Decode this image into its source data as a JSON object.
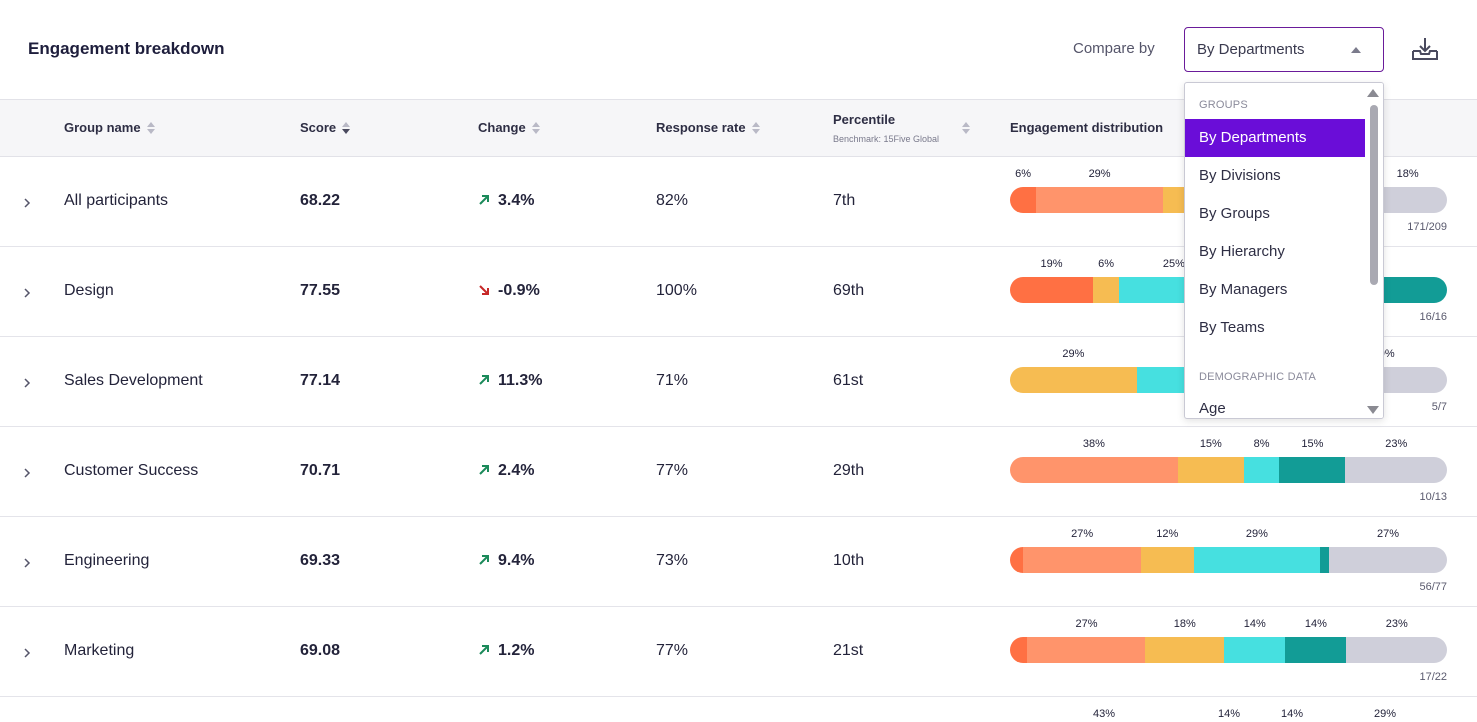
{
  "header": {
    "title": "Engagement breakdown",
    "compare_label": "Compare by",
    "select_value": "By Departments"
  },
  "columns": {
    "group_name": "Group name",
    "score": "Score",
    "change": "Change",
    "response_rate": "Response rate",
    "percentile": "Percentile",
    "percentile_sub": "Benchmark: 15Five Global",
    "distribution": "Engagement distribution"
  },
  "colors": {
    "s1": "#ff7043",
    "s2": "#ff946b",
    "s3": "#f6bc52",
    "s4": "#46e0e0",
    "s5": "#129c96",
    "s6": "#cfcfda",
    "up": "#1b8a5a",
    "down": "#c62828",
    "accent": "#6a0dd8"
  },
  "rows": [
    {
      "name": "All participants",
      "score": "68.22",
      "change": "3.4%",
      "trend": "up",
      "response_rate": "82%",
      "percentile": "7th",
      "count": "171/209",
      "segments": [
        {
          "v": 6,
          "c": "s1",
          "label": "6%"
        },
        {
          "v": 29,
          "c": "s2",
          "label": "29%"
        },
        {
          "v": 16,
          "c": "s3",
          "label": ""
        },
        {
          "v": 18,
          "c": "s4",
          "label": ""
        },
        {
          "v": 13,
          "c": "s5",
          "label": ""
        },
        {
          "v": 18,
          "c": "s6",
          "label": "18%"
        }
      ]
    },
    {
      "name": "Design",
      "score": "77.55",
      "change": "-0.9%",
      "trend": "down",
      "response_rate": "100%",
      "percentile": "69th",
      "count": "16/16",
      "segments": [
        {
          "v": 19,
          "c": "s1",
          "label": "19%"
        },
        {
          "v": 6,
          "c": "s3",
          "label": "6%"
        },
        {
          "v": 25,
          "c": "s4",
          "label": "25%"
        },
        {
          "v": 35,
          "c": "s4",
          "label": ""
        },
        {
          "v": 15,
          "c": "s5",
          "label": ""
        }
      ]
    },
    {
      "name": "Sales Development",
      "score": "77.14",
      "change": "11.3%",
      "trend": "up",
      "response_rate": "71%",
      "percentile": "61st",
      "count": "5/7",
      "segments": [
        {
          "v": 29,
          "c": "s3",
          "label": "29%"
        },
        {
          "v": 42,
          "c": "s4",
          "label": ""
        },
        {
          "v": 29,
          "c": "s6",
          "label": "29%"
        }
      ]
    },
    {
      "name": "Customer Success",
      "score": "70.71",
      "change": "2.4%",
      "trend": "up",
      "response_rate": "77%",
      "percentile": "29th",
      "count": "10/13",
      "segments": [
        {
          "v": 38,
          "c": "s2",
          "label": "38%"
        },
        {
          "v": 15,
          "c": "s3",
          "label": "15%"
        },
        {
          "v": 8,
          "c": "s4",
          "label": "8%"
        },
        {
          "v": 15,
          "c": "s5",
          "label": "15%"
        },
        {
          "v": 23,
          "c": "s6",
          "label": "23%"
        }
      ]
    },
    {
      "name": "Engineering",
      "score": "69.33",
      "change": "9.4%",
      "trend": "up",
      "response_rate": "73%",
      "percentile": "10th",
      "count": "56/77",
      "segments": [
        {
          "v": 3,
          "c": "s1",
          "label": ""
        },
        {
          "v": 27,
          "c": "s2",
          "label": "27%"
        },
        {
          "v": 12,
          "c": "s3",
          "label": "12%"
        },
        {
          "v": 29,
          "c": "s4",
          "label": "29%"
        },
        {
          "v": 2,
          "c": "s5",
          "label": ""
        },
        {
          "v": 27,
          "c": "s6",
          "label": "27%"
        }
      ]
    },
    {
      "name": "Marketing",
      "score": "69.08",
      "change": "1.2%",
      "trend": "up",
      "response_rate": "77%",
      "percentile": "21st",
      "count": "17/22",
      "segments": [
        {
          "v": 4,
          "c": "s1",
          "label": ""
        },
        {
          "v": 27,
          "c": "s2",
          "label": "27%"
        },
        {
          "v": 18,
          "c": "s3",
          "label": "18%"
        },
        {
          "v": 14,
          "c": "s4",
          "label": "14%"
        },
        {
          "v": 14,
          "c": "s5",
          "label": "14%"
        },
        {
          "v": 23,
          "c": "s6",
          "label": "23%"
        }
      ]
    }
  ],
  "partial_row_labels": [
    "43%",
    "14%",
    "14%",
    "29%"
  ],
  "dropdown": {
    "group_groups": "GROUPS",
    "items": [
      "By Departments",
      "By Divisions",
      "By Groups",
      "By Hierarchy",
      "By Managers",
      "By Teams"
    ],
    "selected_index": 0,
    "group_demographic": "DEMOGRAPHIC DATA",
    "demographic_items": [
      "Age"
    ]
  }
}
